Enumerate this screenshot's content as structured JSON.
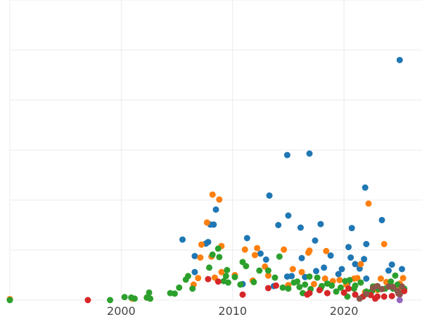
{
  "chart_data": {
    "type": "scatter",
    "title": "",
    "xlabel": "",
    "ylabel": "",
    "xlim": [
      1990,
      2027
    ],
    "ylim": [
      0,
      6
    ],
    "x_ticks": [
      2000,
      2010,
      2020
    ],
    "x_tick_labels": [
      "2000",
      "2010",
      "2020"
    ],
    "y_gridlines": [
      0,
      1,
      2,
      3,
      4,
      5,
      6
    ],
    "x_gridlines": [
      1990,
      2000,
      2010,
      2020
    ],
    "grid": true,
    "legend": "none",
    "series": [
      {
        "color": "#1f77b4",
        "points": [
          [
            2025.0,
            4.8
          ],
          [
            2016.9,
            2.93
          ],
          [
            2014.9,
            2.9
          ],
          [
            2021.9,
            2.25
          ],
          [
            2013.3,
            2.09
          ],
          [
            2008.5,
            1.81
          ],
          [
            2015.0,
            1.69
          ],
          [
            2008.3,
            1.51
          ],
          [
            2008.0,
            1.51
          ],
          [
            2014.1,
            1.5
          ],
          [
            2017.9,
            1.52
          ],
          [
            2020.7,
            1.44
          ],
          [
            2016.1,
            1.45
          ],
          [
            2023.4,
            1.6
          ],
          [
            2011.3,
            1.24
          ],
          [
            2005.5,
            1.21
          ],
          [
            2007.8,
            1.16
          ],
          [
            2007.6,
            1.13
          ],
          [
            2017.4,
            1.19
          ],
          [
            2022.0,
            1.12
          ],
          [
            2020.4,
            1.06
          ],
          [
            2012.5,
            0.93
          ],
          [
            2006.6,
            0.88
          ],
          [
            2013.0,
            0.81
          ],
          [
            2016.2,
            0.84
          ],
          [
            2018.8,
            0.89
          ],
          [
            2020.6,
            0.85
          ],
          [
            2021.8,
            0.82
          ],
          [
            2024.3,
            0.71
          ],
          [
            2021.0,
            0.72
          ],
          [
            2018.2,
            0.65
          ],
          [
            2019.8,
            0.62
          ],
          [
            2021.4,
            0.63
          ],
          [
            2024.0,
            0.59
          ],
          [
            2025.2,
            0.62
          ],
          [
            2006.6,
            0.56
          ],
          [
            2017.5,
            0.58
          ],
          [
            2019.5,
            0.52
          ],
          [
            2022.0,
            0.43
          ],
          [
            2015.3,
            0.48
          ],
          [
            2014.9,
            0.47
          ],
          [
            2016.5,
            0.46
          ],
          [
            2020.3,
            0.33
          ],
          [
            2013.7,
            0.28
          ],
          [
            2010.9,
            0.32
          ]
        ]
      },
      {
        "color": "#ff7f0e",
        "points": [
          [
            1990.0,
            0.02
          ],
          [
            2008.2,
            2.11
          ],
          [
            2008.8,
            2.01
          ],
          [
            2022.2,
            1.93
          ],
          [
            2007.7,
            1.55
          ],
          [
            2007.2,
            1.11
          ],
          [
            2009.0,
            1.08
          ],
          [
            2011.1,
            1.01
          ],
          [
            2012.2,
            1.04
          ],
          [
            2014.6,
            1.01
          ],
          [
            2016.9,
            0.99
          ],
          [
            2016.8,
            0.95
          ],
          [
            2018.4,
            0.98
          ],
          [
            2023.6,
            1.12
          ],
          [
            2007.1,
            0.85
          ],
          [
            2008.1,
            0.87
          ],
          [
            2012.0,
            0.9
          ],
          [
            2021.5,
            0.72
          ],
          [
            2012.9,
            0.67
          ],
          [
            2015.4,
            0.62
          ],
          [
            2016.2,
            0.56
          ],
          [
            2009.0,
            0.56
          ],
          [
            2010.2,
            0.5
          ],
          [
            2013.2,
            0.49
          ],
          [
            2018.3,
            0.43
          ],
          [
            2019.6,
            0.4
          ],
          [
            2020.9,
            0.43
          ],
          [
            2006.9,
            0.44
          ],
          [
            2006.5,
            0.31
          ],
          [
            2008.4,
            0.45
          ],
          [
            2011.8,
            0.39
          ],
          [
            2015.0,
            0.3
          ],
          [
            2017.3,
            0.32
          ],
          [
            2019.0,
            0.38
          ],
          [
            2020.2,
            0.31
          ],
          [
            2021.2,
            0.44
          ],
          [
            2022.7,
            0.27
          ],
          [
            2023.3,
            0.43
          ],
          [
            2023.8,
            0.36
          ],
          [
            2024.7,
            0.28
          ],
          [
            2025.3,
            0.44
          ],
          [
            2025.0,
            0.33
          ],
          [
            2001.0,
            0.03
          ],
          [
            2002.3,
            0.05
          ],
          [
            2021.9,
            0.16
          ],
          [
            2023.0,
            0.2
          ],
          [
            2025.1,
            0.2
          ]
        ]
      },
      {
        "color": "#2ca02c",
        "points": [
          [
            1990.0,
            0.0
          ],
          [
            1999.0,
            0.0
          ],
          [
            2000.3,
            0.06
          ],
          [
            2000.9,
            0.05
          ],
          [
            2001.2,
            0.03
          ],
          [
            2002.3,
            0.05
          ],
          [
            2002.6,
            0.03
          ],
          [
            2002.5,
            0.15
          ],
          [
            2004.4,
            0.14
          ],
          [
            2004.8,
            0.13
          ],
          [
            2005.2,
            0.25
          ],
          [
            2005.8,
            0.41
          ],
          [
            2006.0,
            0.48
          ],
          [
            2006.4,
            0.23
          ],
          [
            2007.9,
            0.65
          ],
          [
            2008.2,
            0.91
          ],
          [
            2008.7,
            1.03
          ],
          [
            2008.8,
            0.86
          ],
          [
            2009.2,
            0.38
          ],
          [
            2009.5,
            0.6
          ],
          [
            2009.6,
            0.35
          ],
          [
            2009.4,
            0.48
          ],
          [
            2010.2,
            0.46
          ],
          [
            2010.9,
            0.76
          ],
          [
            2011.2,
            0.68
          ],
          [
            2010.7,
            0.31
          ],
          [
            2011.9,
            0.36
          ],
          [
            2012.4,
            0.59
          ],
          [
            2013.2,
            0.59
          ],
          [
            2013.8,
            0.45
          ],
          [
            2014.2,
            0.87
          ],
          [
            2014.5,
            0.25
          ],
          [
            2015.0,
            0.23
          ],
          [
            2015.5,
            0.35
          ],
          [
            2015.8,
            0.37
          ],
          [
            2016.0,
            0.26
          ],
          [
            2016.5,
            0.31
          ],
          [
            2016.9,
            0.47
          ],
          [
            2017.0,
            0.22
          ],
          [
            2017.6,
            0.45
          ],
          [
            2017.9,
            0.23
          ],
          [
            2018.5,
            0.33
          ],
          [
            2018.9,
            0.29
          ],
          [
            2019.3,
            0.17
          ],
          [
            2019.7,
            0.25
          ],
          [
            2020.1,
            0.38
          ],
          [
            2020.5,
            0.4
          ],
          [
            2020.9,
            0.23
          ],
          [
            2021.5,
            0.35
          ],
          [
            2022.0,
            0.17
          ],
          [
            2022.6,
            0.27
          ],
          [
            2023.1,
            0.22
          ],
          [
            2023.7,
            0.23
          ],
          [
            2024.2,
            0.37
          ],
          [
            2024.8,
            0.31
          ],
          [
            2025.0,
            0.14
          ],
          [
            2025.4,
            0.23
          ],
          [
            2016.3,
            0.14
          ],
          [
            2020.3,
            0.07
          ],
          [
            2018.0,
            0.28
          ],
          [
            2021.0,
            0.29
          ],
          [
            2022.5,
            0.18
          ],
          [
            2024.4,
            0.23
          ],
          [
            2024.6,
            0.49
          ]
        ]
      },
      {
        "color": "#d62728",
        "points": [
          [
            1997.0,
            0.0
          ],
          [
            2007.8,
            0.42
          ],
          [
            2008.7,
            0.37
          ],
          [
            2010.9,
            0.11
          ],
          [
            2013.2,
            0.24
          ],
          [
            2013.9,
            0.29
          ],
          [
            2016.7,
            0.11
          ],
          [
            2016.9,
            0.14
          ],
          [
            2017.8,
            0.2
          ],
          [
            2018.5,
            0.14
          ],
          [
            2020.0,
            0.15
          ],
          [
            2020.4,
            0.23
          ],
          [
            2021.0,
            0.11
          ],
          [
            2021.7,
            0.07
          ],
          [
            2022.4,
            0.1
          ],
          [
            2023.0,
            0.07
          ],
          [
            2023.6,
            0.07
          ],
          [
            2024.3,
            0.08
          ],
          [
            2024.9,
            0.13
          ],
          [
            2025.4,
            0.18
          ],
          [
            2022.8,
            0.03
          ]
        ]
      },
      {
        "color": "#8c564b",
        "points": [
          [
            2021.4,
            0.03
          ],
          [
            2022.0,
            0.12
          ],
          [
            2022.6,
            0.24
          ],
          [
            2023.0,
            0.28
          ],
          [
            2023.4,
            0.22
          ],
          [
            2024.0,
            0.27
          ],
          [
            2024.4,
            0.26
          ],
          [
            2024.8,
            0.18
          ],
          [
            2025.2,
            0.27
          ],
          [
            2025.0,
            0.11
          ]
        ]
      },
      {
        "color": "#9467bd",
        "points": [
          [
            2025.0,
            0.0
          ]
        ]
      }
    ]
  }
}
